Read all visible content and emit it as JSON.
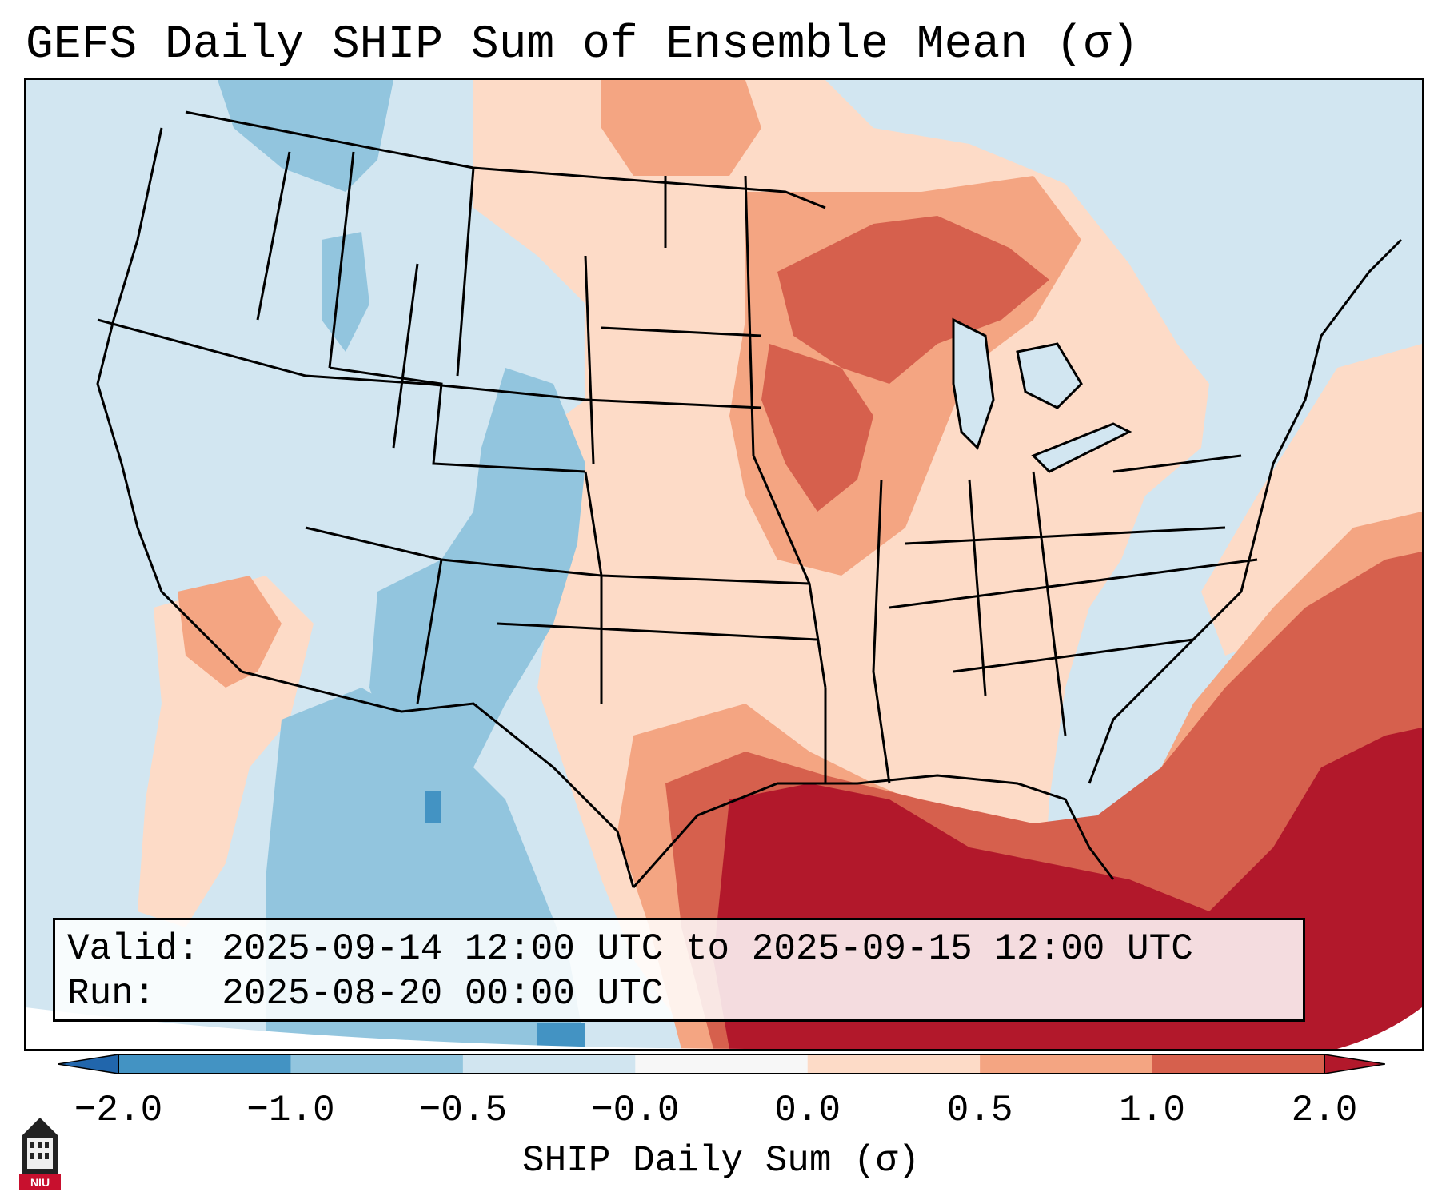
{
  "title": "GEFS Daily SHIP Sum of Ensemble Mean (σ)",
  "info": {
    "valid_line": "Valid: 2025-09-14 12:00 UTC to 2025-09-15 12:00 UTC",
    "run_line": "Run:   2025-08-20 00:00 UTC"
  },
  "colorbar": {
    "label": "SHIP Daily Sum (σ)",
    "ticks": [
      "−2.0",
      "−1.0",
      "−0.5",
      "−0.0",
      "0.0",
      "0.5",
      "1.0",
      "2.0"
    ],
    "colors": {
      "below_min": "#2166ac",
      "bins": [
        "#4393c3",
        "#92c5de",
        "#d1e5f0",
        "#f7f7f7",
        "#fddbc7",
        "#f4a582",
        "#d6604d"
      ],
      "above_max": "#b2182b"
    }
  },
  "logo": {
    "text": "NIU",
    "icon": "university-building-icon"
  }
}
